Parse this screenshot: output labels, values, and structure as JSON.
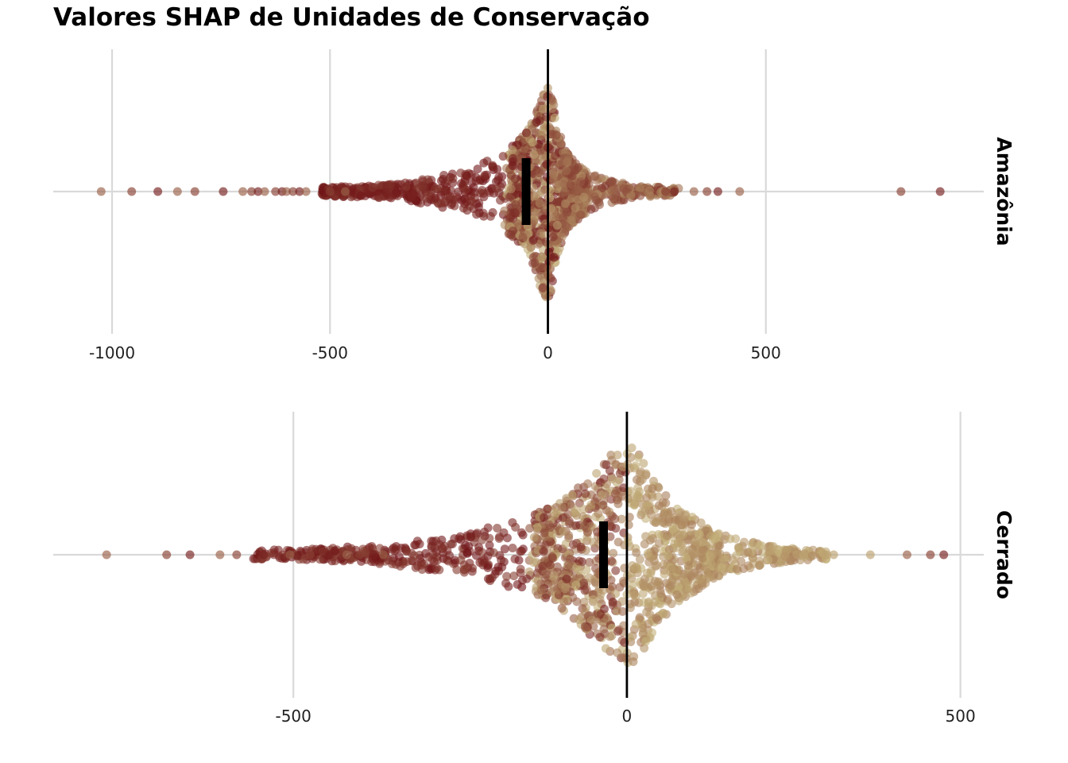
{
  "title": "Valores SHAP de Unidades de Conservação",
  "colors": {
    "low": "#c4b27a",
    "high": "#6e1015",
    "grid": "#d9d9d9",
    "zero_line": "#000000",
    "median_bar": "#000000"
  },
  "chart_data": [
    {
      "type": "scatter",
      "panel": "Amazônia",
      "xlim": [
        -1135,
        1000
      ],
      "x_ticks": [
        -1000,
        -500,
        0,
        500
      ],
      "x_tick_labels": [
        "-1000",
        "-500",
        "0",
        "500"
      ],
      "grid": true,
      "reference_line_x": 0,
      "median_marker_x": -50,
      "outliers_x": [
        -1025,
        -955,
        -895,
        -850,
        -810,
        -745,
        -700,
        -680,
        -665,
        -650,
        -625,
        -610,
        -600,
        -585,
        -570,
        -555,
        -500,
        -480,
        -465,
        270,
        290,
        335,
        365,
        390,
        440,
        810,
        900
      ],
      "density_profile_x": [
        -520,
        -400,
        -300,
        -200,
        -150,
        -100,
        -70,
        -40,
        -20,
        -10,
        0,
        10,
        20,
        40,
        70,
        100,
        150,
        200,
        260,
        300
      ],
      "density_profile_halfwidth": [
        0.04,
        0.06,
        0.1,
        0.18,
        0.27,
        0.36,
        0.45,
        0.6,
        0.85,
        0.95,
        1.0,
        0.9,
        0.6,
        0.38,
        0.25,
        0.16,
        0.1,
        0.06,
        0.04,
        0.03
      ],
      "color_rule": "mostly dark red on negative side, mix of red and tan near zero"
    },
    {
      "type": "scatter",
      "panel": "Cerrado",
      "xlim": [
        -860,
        535
      ],
      "x_ticks": [
        -500,
        0,
        500
      ],
      "x_tick_labels": [
        "-500",
        "0",
        "500"
      ],
      "grid": true,
      "reference_line_x": 0,
      "median_marker_x": -35,
      "outliers_x": [
        -780,
        -690,
        -655,
        -610,
        -585,
        -545,
        -505,
        -475,
        -445,
        -420,
        -400,
        -380,
        -365,
        255,
        265,
        300,
        310,
        365,
        420,
        455,
        475
      ],
      "density_profile_x": [
        -560,
        -450,
        -350,
        -250,
        -200,
        -150,
        -100,
        -60,
        -30,
        -10,
        0,
        20,
        50,
        80,
        110,
        150,
        200,
        250,
        300
      ],
      "density_profile_halfwidth": [
        0.04,
        0.06,
        0.1,
        0.18,
        0.26,
        0.34,
        0.48,
        0.7,
        0.9,
        0.98,
        1.0,
        0.95,
        0.6,
        0.42,
        0.3,
        0.17,
        0.1,
        0.06,
        0.04
      ],
      "color_rule": "dark red on negative tail, tan dominant near and right of zero"
    }
  ]
}
